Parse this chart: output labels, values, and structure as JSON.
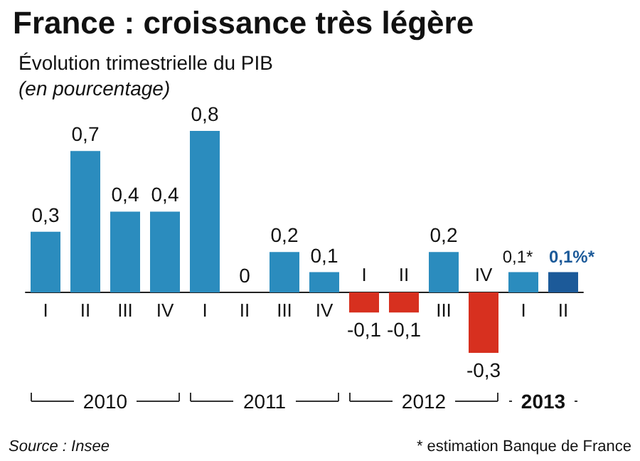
{
  "chart_data": {
    "type": "bar",
    "title": "France : croissance très légère",
    "subtitle": "Évolution trimestrielle du PIB",
    "ylabel": "(en pourcentage)",
    "categories": [
      "I",
      "II",
      "III",
      "IV",
      "I",
      "II",
      "III",
      "IV",
      "I",
      "II",
      "III",
      "IV",
      "I",
      "II"
    ],
    "values": [
      0.3,
      0.7,
      0.4,
      0.4,
      0.8,
      0,
      0.2,
      0.1,
      -0.1,
      -0.1,
      0.2,
      -0.3,
      0.1,
      0.1
    ],
    "colors": [
      "#2b8cbe",
      "#2b8cbe",
      "#2b8cbe",
      "#2b8cbe",
      "#2b8cbe",
      "#2b8cbe",
      "#2b8cbe",
      "#2b8cbe",
      "#d7301f",
      "#d7301f",
      "#2b8cbe",
      "#d7301f",
      "#2b8cbe",
      "#1c5a99"
    ],
    "value_labels": [
      "0,3",
      "0,7",
      "0,4",
      "0,4",
      "0,8",
      "0",
      "0,2",
      "0,1",
      "-0,1",
      "-0,1",
      "0,2",
      "-0,3",
      "0,1*",
      "0,1%*"
    ],
    "annotations": [
      "2010",
      "2011",
      "2012",
      "2013",
      "Source : Insee",
      "* estimation Banque de France"
    ]
  }
}
